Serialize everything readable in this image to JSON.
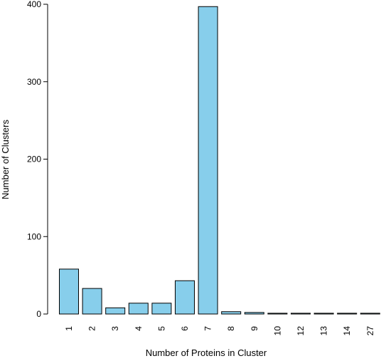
{
  "chart_data": {
    "type": "bar",
    "title": "",
    "xlabel": "Number of Proteins in Cluster",
    "ylabel": "Number of Clusters",
    "categories": [
      "1",
      "2",
      "3",
      "4",
      "5",
      "6",
      "7",
      "8",
      "9",
      "10",
      "12",
      "13",
      "14",
      "27"
    ],
    "values": [
      58,
      33,
      8,
      14,
      14,
      43,
      397,
      3,
      2,
      1,
      1,
      1,
      1,
      1
    ],
    "ylim": [
      0,
      400
    ],
    "yticks": [
      0,
      100,
      200,
      300,
      400
    ],
    "grid": false,
    "legend": "none",
    "bar_color": "#87ceeb",
    "bar_stroke": "#000000",
    "x_tick_rotation": "vertical"
  }
}
